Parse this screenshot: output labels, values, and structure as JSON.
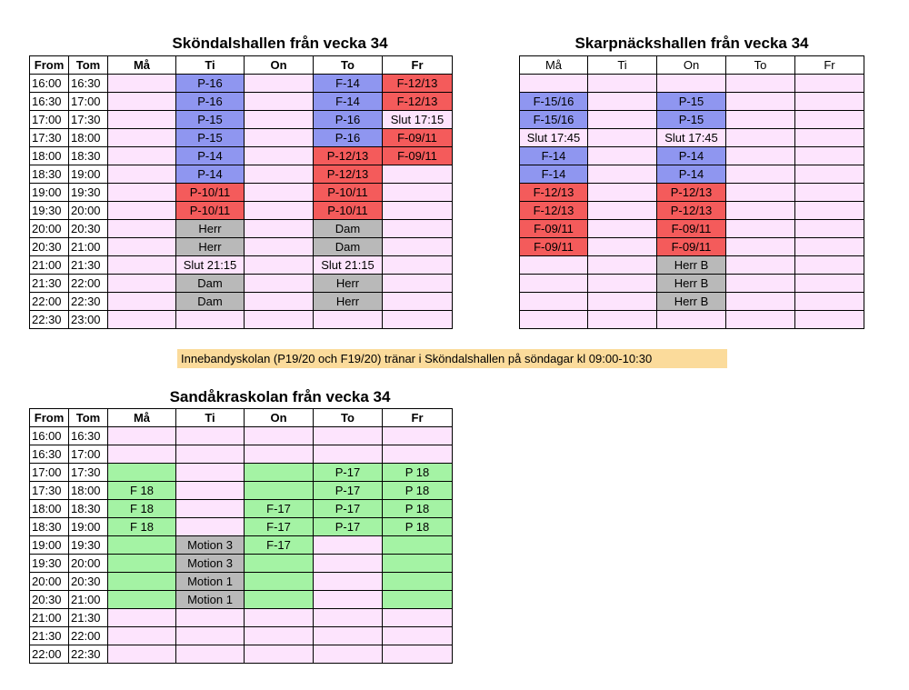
{
  "colors": {
    "empty": "#fde4fd",
    "blue": "#8f96f0",
    "red": "#f45b5b",
    "gray": "#b9b9b9",
    "magenta": "#f89ef8",
    "green": "#a4f3a4",
    "note": "#fbdb9b"
  },
  "skondal": {
    "title": "Sköndalshallen från vecka 34",
    "headers": [
      "From",
      "Tom",
      "Må",
      "Ti",
      "On",
      "To",
      "Fr"
    ],
    "rows": [
      {
        "from": "16:00",
        "tom": "16:30",
        "cells": [
          {
            "text": "",
            "color": ""
          },
          {
            "text": "P-16",
            "color": "blue"
          },
          {
            "text": "",
            "color": ""
          },
          {
            "text": "F-14",
            "color": "blue"
          },
          {
            "text": "F-12/13",
            "color": "red"
          }
        ]
      },
      {
        "from": "16:30",
        "tom": "17:00",
        "cells": [
          {
            "text": "",
            "color": ""
          },
          {
            "text": "P-16",
            "color": "blue"
          },
          {
            "text": "",
            "color": ""
          },
          {
            "text": "F-14",
            "color": "blue"
          },
          {
            "text": "F-12/13",
            "color": "red"
          }
        ]
      },
      {
        "from": "17:00",
        "tom": "17:30",
        "cells": [
          {
            "text": "",
            "color": ""
          },
          {
            "text": "P-15",
            "color": "blue"
          },
          {
            "text": "",
            "color": ""
          },
          {
            "text": "P-16",
            "color": "blue"
          },
          {
            "text": "Slut 17:15",
            "color": "magenta"
          }
        ]
      },
      {
        "from": "17:30",
        "tom": "18:00",
        "cells": [
          {
            "text": "",
            "color": ""
          },
          {
            "text": "P-15",
            "color": "blue"
          },
          {
            "text": "",
            "color": ""
          },
          {
            "text": "P-16",
            "color": "blue"
          },
          {
            "text": "F-09/11",
            "color": "red"
          }
        ]
      },
      {
        "from": "18:00",
        "tom": "18:30",
        "cells": [
          {
            "text": "",
            "color": ""
          },
          {
            "text": "P-14",
            "color": "blue"
          },
          {
            "text": "",
            "color": ""
          },
          {
            "text": "P-12/13",
            "color": "red"
          },
          {
            "text": "F-09/11",
            "color": "red"
          }
        ]
      },
      {
        "from": "18:30",
        "tom": "19:00",
        "cells": [
          {
            "text": "",
            "color": ""
          },
          {
            "text": "P-14",
            "color": "blue"
          },
          {
            "text": "",
            "color": ""
          },
          {
            "text": "P-12/13",
            "color": "red"
          },
          {
            "text": "",
            "color": ""
          }
        ]
      },
      {
        "from": "19:00",
        "tom": "19:30",
        "cells": [
          {
            "text": "",
            "color": ""
          },
          {
            "text": "P-10/11",
            "color": "red"
          },
          {
            "text": "",
            "color": ""
          },
          {
            "text": "P-10/11",
            "color": "red"
          },
          {
            "text": "",
            "color": ""
          }
        ]
      },
      {
        "from": "19:30",
        "tom": "20:00",
        "cells": [
          {
            "text": "",
            "color": ""
          },
          {
            "text": "P-10/11",
            "color": "red"
          },
          {
            "text": "",
            "color": ""
          },
          {
            "text": "P-10/11",
            "color": "red"
          },
          {
            "text": "",
            "color": ""
          }
        ]
      },
      {
        "from": "20:00",
        "tom": "20:30",
        "cells": [
          {
            "text": "",
            "color": ""
          },
          {
            "text": "Herr",
            "color": "gray"
          },
          {
            "text": "",
            "color": ""
          },
          {
            "text": "Dam",
            "color": "gray"
          },
          {
            "text": "",
            "color": ""
          }
        ]
      },
      {
        "from": "20:30",
        "tom": "21:00",
        "cells": [
          {
            "text": "",
            "color": ""
          },
          {
            "text": "Herr",
            "color": "gray"
          },
          {
            "text": "",
            "color": ""
          },
          {
            "text": "Dam",
            "color": "gray"
          },
          {
            "text": "",
            "color": ""
          }
        ]
      },
      {
        "from": "21:00",
        "tom": "21:30",
        "cells": [
          {
            "text": "",
            "color": ""
          },
          {
            "text": "Slut 21:15",
            "color": "magenta"
          },
          {
            "text": "",
            "color": ""
          },
          {
            "text": "Slut 21:15",
            "color": "magenta"
          },
          {
            "text": "",
            "color": ""
          }
        ]
      },
      {
        "from": "21:30",
        "tom": "22:00",
        "cells": [
          {
            "text": "",
            "color": ""
          },
          {
            "text": "Dam",
            "color": "gray"
          },
          {
            "text": "",
            "color": ""
          },
          {
            "text": "Herr",
            "color": "gray"
          },
          {
            "text": "",
            "color": ""
          }
        ]
      },
      {
        "from": "22:00",
        "tom": "22:30",
        "cells": [
          {
            "text": "",
            "color": ""
          },
          {
            "text": "Dam",
            "color": "gray"
          },
          {
            "text": "",
            "color": ""
          },
          {
            "text": "Herr",
            "color": "gray"
          },
          {
            "text": "",
            "color": ""
          }
        ]
      },
      {
        "from": "22:30",
        "tom": "23:00",
        "cells": [
          {
            "text": "",
            "color": ""
          },
          {
            "text": "",
            "color": ""
          },
          {
            "text": "",
            "color": ""
          },
          {
            "text": "",
            "color": ""
          },
          {
            "text": "",
            "color": ""
          }
        ]
      }
    ]
  },
  "skarpnack": {
    "title": "Skarpnäckshallen från vecka 34",
    "headers": [
      "Må",
      "Ti",
      "On",
      "To",
      "Fr"
    ],
    "rows": [
      {
        "cells": [
          {
            "text": "",
            "color": ""
          },
          {
            "text": "",
            "color": ""
          },
          {
            "text": "",
            "color": ""
          },
          {
            "text": "",
            "color": ""
          },
          {
            "text": "",
            "color": ""
          }
        ]
      },
      {
        "cells": [
          {
            "text": "F-15/16",
            "color": "blue"
          },
          {
            "text": "",
            "color": ""
          },
          {
            "text": "P-15",
            "color": "blue"
          },
          {
            "text": "",
            "color": ""
          },
          {
            "text": "",
            "color": ""
          }
        ]
      },
      {
        "cells": [
          {
            "text": "F-15/16",
            "color": "blue"
          },
          {
            "text": "",
            "color": ""
          },
          {
            "text": "P-15",
            "color": "blue"
          },
          {
            "text": "",
            "color": ""
          },
          {
            "text": "",
            "color": ""
          }
        ]
      },
      {
        "cells": [
          {
            "text": "Slut 17:45",
            "color": "magenta"
          },
          {
            "text": "",
            "color": ""
          },
          {
            "text": "Slut 17:45",
            "color": "magenta"
          },
          {
            "text": "",
            "color": ""
          },
          {
            "text": "",
            "color": ""
          }
        ]
      },
      {
        "cells": [
          {
            "text": "F-14",
            "color": "blue"
          },
          {
            "text": "",
            "color": ""
          },
          {
            "text": "P-14",
            "color": "blue"
          },
          {
            "text": "",
            "color": ""
          },
          {
            "text": "",
            "color": ""
          }
        ]
      },
      {
        "cells": [
          {
            "text": "F-14",
            "color": "blue"
          },
          {
            "text": "",
            "color": ""
          },
          {
            "text": "P-14",
            "color": "blue"
          },
          {
            "text": "",
            "color": ""
          },
          {
            "text": "",
            "color": ""
          }
        ]
      },
      {
        "cells": [
          {
            "text": "F-12/13",
            "color": "red"
          },
          {
            "text": "",
            "color": ""
          },
          {
            "text": "P-12/13",
            "color": "red"
          },
          {
            "text": "",
            "color": ""
          },
          {
            "text": "",
            "color": ""
          }
        ]
      },
      {
        "cells": [
          {
            "text": "F-12/13",
            "color": "red"
          },
          {
            "text": "",
            "color": ""
          },
          {
            "text": "P-12/13",
            "color": "red"
          },
          {
            "text": "",
            "color": ""
          },
          {
            "text": "",
            "color": ""
          }
        ]
      },
      {
        "cells": [
          {
            "text": "F-09/11",
            "color": "red"
          },
          {
            "text": "",
            "color": ""
          },
          {
            "text": "F-09/11",
            "color": "red"
          },
          {
            "text": "",
            "color": ""
          },
          {
            "text": "",
            "color": ""
          }
        ]
      },
      {
        "cells": [
          {
            "text": "F-09/11",
            "color": "red"
          },
          {
            "text": "",
            "color": ""
          },
          {
            "text": "F-09/11",
            "color": "red"
          },
          {
            "text": "",
            "color": ""
          },
          {
            "text": "",
            "color": ""
          }
        ]
      },
      {
        "cells": [
          {
            "text": "",
            "color": ""
          },
          {
            "text": "",
            "color": ""
          },
          {
            "text": "Herr B",
            "color": "gray"
          },
          {
            "text": "",
            "color": ""
          },
          {
            "text": "",
            "color": ""
          }
        ]
      },
      {
        "cells": [
          {
            "text": "",
            "color": ""
          },
          {
            "text": "",
            "color": ""
          },
          {
            "text": "Herr B",
            "color": "gray"
          },
          {
            "text": "",
            "color": ""
          },
          {
            "text": "",
            "color": ""
          }
        ]
      },
      {
        "cells": [
          {
            "text": "",
            "color": ""
          },
          {
            "text": "",
            "color": ""
          },
          {
            "text": "Herr B",
            "color": "gray"
          },
          {
            "text": "",
            "color": ""
          },
          {
            "text": "",
            "color": ""
          }
        ]
      },
      {
        "cells": [
          {
            "text": "",
            "color": ""
          },
          {
            "text": "",
            "color": ""
          },
          {
            "text": "",
            "color": ""
          },
          {
            "text": "",
            "color": ""
          },
          {
            "text": "",
            "color": ""
          }
        ]
      }
    ]
  },
  "note": "Innebandyskolan (P19/20 och F19/20) tränar i Sköndalshallen på söndagar kl 09:00-10:30",
  "sandakra": {
    "title": "Sandåkraskolan från vecka 34",
    "headers": [
      "From",
      "Tom",
      "Må",
      "Ti",
      "On",
      "To",
      "Fr"
    ],
    "rows": [
      {
        "from": "16:00",
        "tom": "16:30",
        "cells": [
          {
            "text": "",
            "color": ""
          },
          {
            "text": "",
            "color": ""
          },
          {
            "text": "",
            "color": ""
          },
          {
            "text": "",
            "color": ""
          },
          {
            "text": "",
            "color": ""
          }
        ]
      },
      {
        "from": "16:30",
        "tom": "17:00",
        "cells": [
          {
            "text": "",
            "color": ""
          },
          {
            "text": "",
            "color": ""
          },
          {
            "text": "",
            "color": ""
          },
          {
            "text": "",
            "color": ""
          },
          {
            "text": "",
            "color": ""
          }
        ]
      },
      {
        "from": "17:00",
        "tom": "17:30",
        "cells": [
          {
            "text": "",
            "color": "green"
          },
          {
            "text": "",
            "color": ""
          },
          {
            "text": "",
            "color": "green"
          },
          {
            "text": "P-17",
            "color": "green"
          },
          {
            "text": "P 18",
            "color": "green"
          }
        ]
      },
      {
        "from": "17:30",
        "tom": "18:00",
        "cells": [
          {
            "text": "F 18",
            "color": "green"
          },
          {
            "text": "",
            "color": ""
          },
          {
            "text": "",
            "color": "green"
          },
          {
            "text": "P-17",
            "color": "green"
          },
          {
            "text": "P 18",
            "color": "green"
          }
        ]
      },
      {
        "from": "18:00",
        "tom": "18:30",
        "cells": [
          {
            "text": "F 18",
            "color": "green"
          },
          {
            "text": "",
            "color": ""
          },
          {
            "text": "F-17",
            "color": "green"
          },
          {
            "text": "P-17",
            "color": "green"
          },
          {
            "text": "P 18",
            "color": "green"
          }
        ]
      },
      {
        "from": "18:30",
        "tom": "19:00",
        "cells": [
          {
            "text": "F 18",
            "color": "green"
          },
          {
            "text": "",
            "color": ""
          },
          {
            "text": "F-17",
            "color": "green"
          },
          {
            "text": "P-17",
            "color": "green"
          },
          {
            "text": "P 18",
            "color": "green"
          }
        ]
      },
      {
        "from": "19:00",
        "tom": "19:30",
        "cells": [
          {
            "text": "",
            "color": "green"
          },
          {
            "text": "Motion 3",
            "color": "gray"
          },
          {
            "text": "F-17",
            "color": "green"
          },
          {
            "text": "",
            "color": ""
          },
          {
            "text": "",
            "color": "green"
          }
        ]
      },
      {
        "from": "19:30",
        "tom": "20:00",
        "cells": [
          {
            "text": "",
            "color": "green"
          },
          {
            "text": "Motion 3",
            "color": "gray"
          },
          {
            "text": "",
            "color": "green"
          },
          {
            "text": "",
            "color": ""
          },
          {
            "text": "",
            "color": "green"
          }
        ]
      },
      {
        "from": "20:00",
        "tom": "20:30",
        "cells": [
          {
            "text": "",
            "color": "green"
          },
          {
            "text": "Motion 1",
            "color": "gray"
          },
          {
            "text": "",
            "color": "green"
          },
          {
            "text": "",
            "color": ""
          },
          {
            "text": "",
            "color": "green"
          }
        ]
      },
      {
        "from": "20:30",
        "tom": "21:00",
        "cells": [
          {
            "text": "",
            "color": "green"
          },
          {
            "text": "Motion 1",
            "color": "gray"
          },
          {
            "text": "",
            "color": "green"
          },
          {
            "text": "",
            "color": ""
          },
          {
            "text": "",
            "color": "green"
          }
        ]
      },
      {
        "from": "21:00",
        "tom": "21:30",
        "cells": [
          {
            "text": "",
            "color": ""
          },
          {
            "text": "",
            "color": ""
          },
          {
            "text": "",
            "color": ""
          },
          {
            "text": "",
            "color": ""
          },
          {
            "text": "",
            "color": ""
          }
        ]
      },
      {
        "from": "21:30",
        "tom": "22:00",
        "cells": [
          {
            "text": "",
            "color": ""
          },
          {
            "text": "",
            "color": ""
          },
          {
            "text": "",
            "color": ""
          },
          {
            "text": "",
            "color": ""
          },
          {
            "text": "",
            "color": ""
          }
        ]
      },
      {
        "from": "22:00",
        "tom": "22:30",
        "cells": [
          {
            "text": "",
            "color": ""
          },
          {
            "text": "",
            "color": ""
          },
          {
            "text": "",
            "color": ""
          },
          {
            "text": "",
            "color": ""
          },
          {
            "text": "",
            "color": ""
          }
        ]
      }
    ]
  }
}
